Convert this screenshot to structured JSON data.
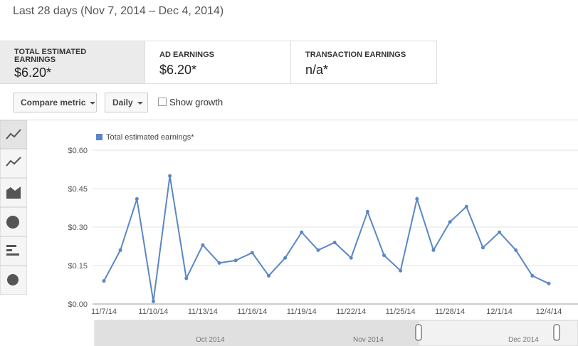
{
  "header": {
    "title": "Last 28 days (Nov 7, 2014 – Dec 4, 2014)"
  },
  "metrics": [
    {
      "label": "TOTAL ESTIMATED EARNINGS",
      "value": "$6.20*"
    },
    {
      "label": "AD EARNINGS",
      "value": "$6.20*"
    },
    {
      "label": "TRANSACTION EARNINGS",
      "value": "n/a*"
    }
  ],
  "controls": {
    "compare": "Compare metric",
    "interval": "Daily",
    "growth": "Show growth"
  },
  "navigator": {
    "labels": [
      "Oct 2014",
      "Nov 2014",
      "Dec 2014"
    ]
  },
  "chart_data": {
    "type": "line",
    "categories": [
      "11/7/14",
      null,
      null,
      "11/10/14",
      null,
      null,
      "11/13/14",
      null,
      null,
      "11/16/14",
      null,
      null,
      "11/19/14",
      null,
      null,
      "11/22/14",
      null,
      null,
      "11/25/14",
      null,
      null,
      "11/28/14",
      null,
      null,
      "12/1/14",
      null,
      null,
      "12/4/14"
    ],
    "series": [
      {
        "name": "Total estimated earnings*",
        "color": "#5a87c5",
        "values": [
          0.09,
          0.21,
          0.41,
          0.01,
          0.5,
          0.1,
          0.23,
          0.16,
          0.17,
          0.2,
          0.11,
          0.18,
          0.28,
          0.21,
          0.24,
          0.18,
          0.36,
          0.19,
          0.13,
          0.41,
          0.21,
          0.32,
          0.38,
          0.22,
          0.28,
          0.21,
          0.11,
          0.08
        ]
      }
    ],
    "ylim": [
      0,
      0.6
    ],
    "yticks": [
      {
        "value": 0,
        "label": "$0.00"
      },
      {
        "value": 0.15,
        "label": "$0.15"
      },
      {
        "value": 0.3,
        "label": "$0.30"
      },
      {
        "value": 0.45,
        "label": "$0.45"
      },
      {
        "value": 0.6,
        "label": "$0.60"
      }
    ],
    "grid": true
  }
}
